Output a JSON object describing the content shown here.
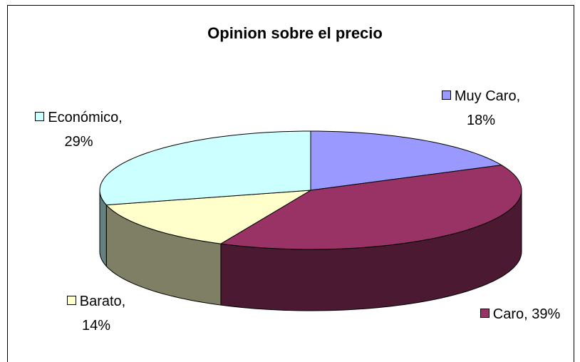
{
  "chart_data": {
    "type": "pie",
    "title": "Opinion sobre el precio",
    "categories": [
      "Muy Caro",
      "Caro",
      "Barato",
      "Económico"
    ],
    "values": [
      18,
      39,
      14,
      29
    ],
    "value_labels": [
      "Muy Caro, 18%",
      "Caro, 39%",
      "Barato, 14%",
      "Económico, 29%"
    ],
    "colors": [
      "#9999ff",
      "#993366",
      "#ffffcc",
      "#ccffff"
    ],
    "three_d": true
  }
}
